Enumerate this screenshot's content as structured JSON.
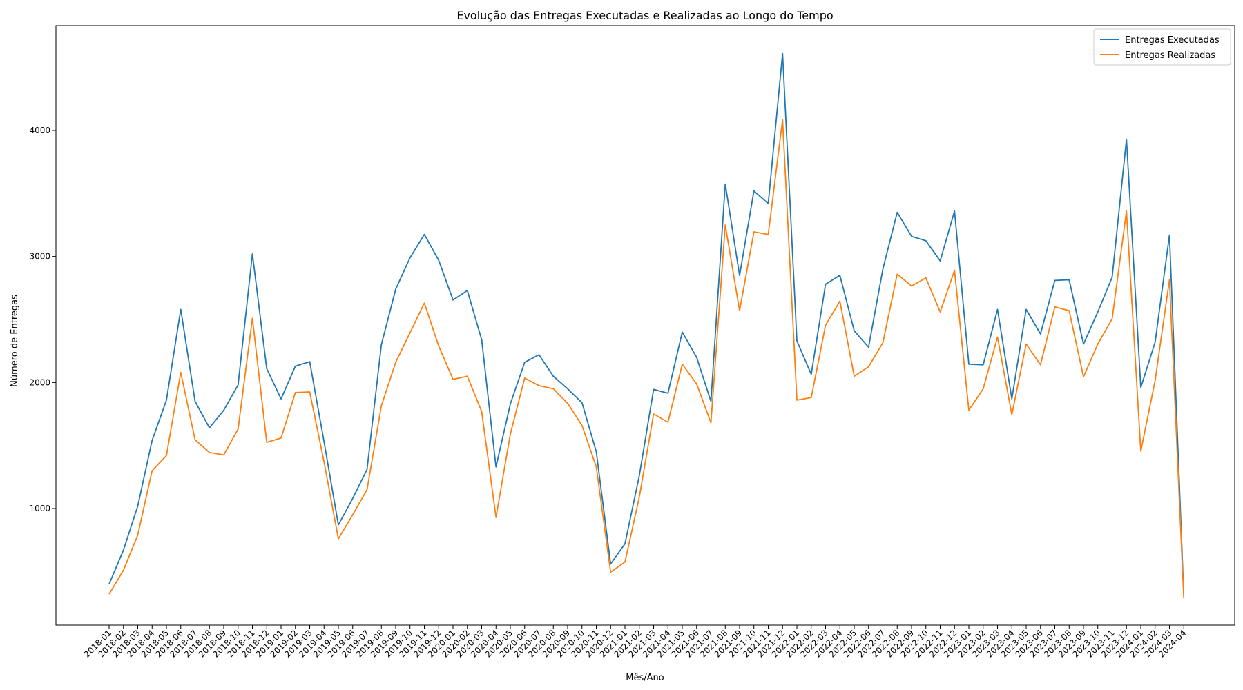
{
  "chart_data": {
    "type": "line",
    "title": "Evolução das Entregas Executadas e Realizadas ao Longo do Tempo",
    "xlabel": "Mês/Ano",
    "ylabel": "Número de Entregas",
    "ylim": [
      0,
      4800
    ],
    "yticks": [
      1000,
      2000,
      3000,
      4000
    ],
    "legend_position": "top-right",
    "grid": false,
    "x": [
      "2018-01",
      "2018-02",
      "2018-03",
      "2018-04",
      "2018-05",
      "2018-06",
      "2018-07",
      "2018-08",
      "2018-09",
      "2018-10",
      "2018-11",
      "2018-12",
      "2019-01",
      "2019-02",
      "2019-03",
      "2019-04",
      "2019-05",
      "2019-06",
      "2019-07",
      "2019-08",
      "2019-09",
      "2019-10",
      "2019-11",
      "2019-12",
      "2020-01",
      "2020-02",
      "2020-03",
      "2020-04",
      "2020-05",
      "2020-06",
      "2020-07",
      "2020-08",
      "2020-09",
      "2020-10",
      "2020-11",
      "2020-12",
      "2021-01",
      "2021-02",
      "2021-03",
      "2021-04",
      "2021-05",
      "2021-06",
      "2021-07",
      "2021-08",
      "2021-09",
      "2021-10",
      "2021-11",
      "2021-12",
      "2022-01",
      "2022-02",
      "2022-03",
      "2022-04",
      "2022-05",
      "2022-06",
      "2022-07",
      "2022-08",
      "2022-09",
      "2022-10",
      "2022-11",
      "2022-12",
      "2023-01",
      "2023-02",
      "2023-03",
      "2023-04",
      "2023-05",
      "2023-06",
      "2023-07",
      "2023-08",
      "2023-09",
      "2023-10",
      "2023-11",
      "2023-12",
      "2024-01",
      "2024-02",
      "2024-03",
      "2024-04"
    ],
    "series": [
      {
        "name": "Entregas Executadas",
        "color": "#1f77b4",
        "values": [
          400,
          670,
          1020,
          1540,
          1860,
          2580,
          1850,
          1640,
          1780,
          1980,
          3020,
          2110,
          1870,
          2130,
          2165,
          1530,
          870,
          1080,
          1310,
          2300,
          2740,
          2990,
          3175,
          2970,
          2655,
          2730,
          2340,
          1330,
          1830,
          2160,
          2220,
          2050,
          1950,
          1840,
          1450,
          560,
          720,
          1260,
          1945,
          1915,
          2400,
          2200,
          1850,
          3575,
          2850,
          3520,
          3420,
          4610,
          2330,
          2065,
          2780,
          2850,
          2410,
          2280,
          2900,
          3350,
          3160,
          3125,
          2965,
          3360,
          2145,
          2140,
          2580,
          1870,
          2580,
          2385,
          2810,
          2815,
          2305,
          2560,
          2835,
          3930,
          1960,
          2320,
          3170,
          310
        ]
      },
      {
        "name": "Entregas Realizadas",
        "color": "#ff7f0e",
        "values": [
          320,
          510,
          790,
          1300,
          1420,
          2080,
          1545,
          1445,
          1425,
          1630,
          2510,
          1525,
          1560,
          1920,
          1925,
          1370,
          760,
          950,
          1150,
          1815,
          2160,
          2395,
          2630,
          2290,
          2025,
          2050,
          1770,
          930,
          1590,
          2035,
          1975,
          1950,
          1835,
          1660,
          1330,
          495,
          575,
          1090,
          1750,
          1685,
          2145,
          1990,
          1680,
          3250,
          2570,
          3195,
          3175,
          4085,
          1860,
          1880,
          2455,
          2645,
          2050,
          2125,
          2315,
          2860,
          2765,
          2830,
          2560,
          2890,
          1780,
          1950,
          2360,
          1745,
          2305,
          2140,
          2600,
          2570,
          2045,
          2305,
          2505,
          3360,
          1455,
          2015,
          2815,
          290
        ]
      }
    ]
  }
}
